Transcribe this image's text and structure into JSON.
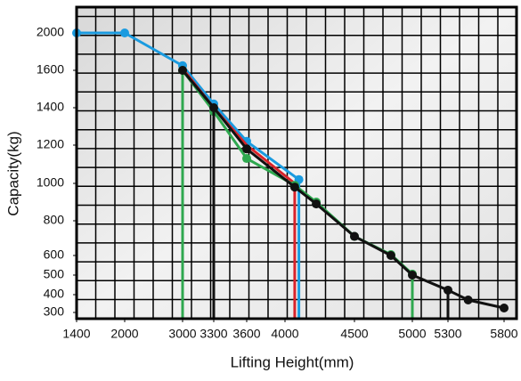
{
  "chart_data": {
    "type": "line",
    "xlabel": "Lifting Height(mm)",
    "ylabel": "Capacity(kg)",
    "xlim": [
      1400,
      5800
    ],
    "ylim": [
      300,
      2000
    ],
    "xticks": [
      1400,
      2000,
      3000,
      3300,
      3600,
      4000,
      4500,
      5000,
      5300,
      5800
    ],
    "yticks": [
      300,
      400,
      500,
      600,
      800,
      1000,
      1200,
      1400,
      1600,
      2000
    ],
    "grid": true,
    "series": [
      {
        "color": "#1a9be0",
        "markers": true,
        "drops": [
          5
        ],
        "x": [
          1400,
          2000,
          3000,
          3300,
          3600,
          4100
        ],
        "values": [
          2000,
          2000,
          1650,
          1420,
          1220,
          1020
        ]
      },
      {
        "color": "#d9232a",
        "markers": false,
        "drops": [
          0,
          3
        ],
        "x": [
          3000,
          3300,
          3600,
          4070
        ],
        "values": [
          1620,
          1400,
          1200,
          1000
        ]
      },
      {
        "color": "#2fa84f",
        "markers": true,
        "drops": [
          0,
          7
        ],
        "x": [
          3000,
          3300,
          3600,
          4070,
          4225,
          4500,
          4815,
          5000
        ],
        "values": [
          1600,
          1380,
          1130,
          990,
          900,
          710,
          605,
          505
        ]
      },
      {
        "color": "#111111",
        "markers": true,
        "drops": [
          1,
          8
        ],
        "x": [
          3000,
          3300,
          3600,
          4070,
          4225,
          4500,
          4815,
          5000,
          5300,
          5480,
          5800
        ],
        "values": [
          1600,
          1400,
          1180,
          980,
          890,
          710,
          600,
          500,
          423,
          370,
          325
        ]
      }
    ]
  }
}
